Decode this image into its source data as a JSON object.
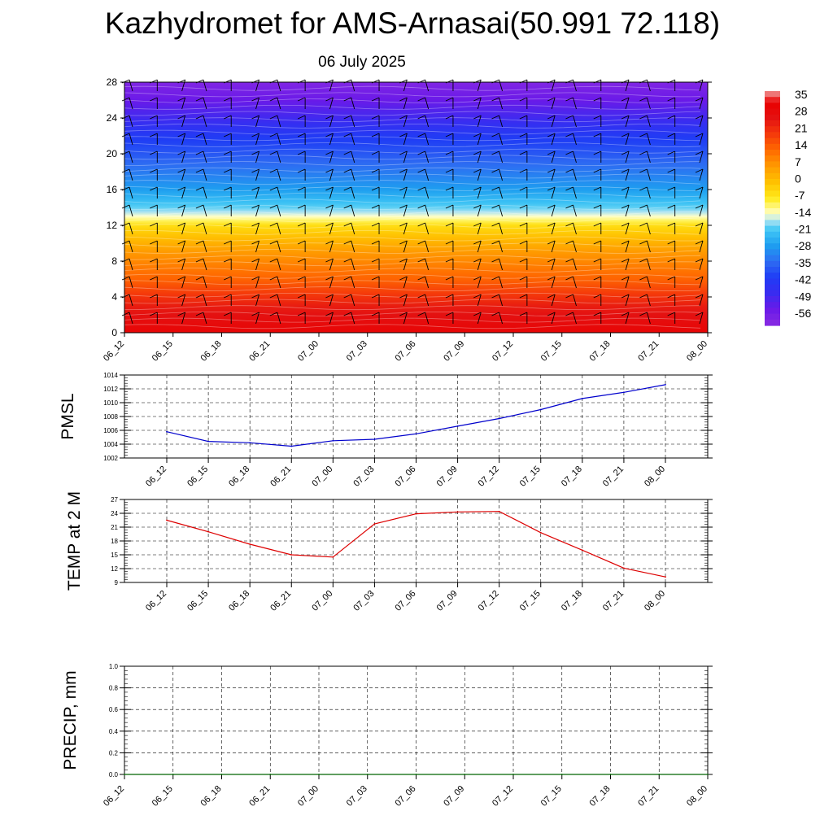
{
  "page": {
    "title": "Kazhydromet for AMS-Arnasai(50.991 72.118)",
    "subtitle": "06 July 2025"
  },
  "colors": {
    "pmsl_line": "#0000cc",
    "temp_line": "#dd0000",
    "precip_line": "#006400",
    "grid": "#000000"
  },
  "chart_data": [
    {
      "type": "heatmap",
      "title": "Kazhydromet for AMS-Arnasai(50.991 72.118)",
      "subtitle": "06 July 2025",
      "xlabel": "",
      "ylabel": "",
      "x_ticks": [
        "06_12",
        "06_15",
        "06_18",
        "06_21",
        "07_00",
        "07_03",
        "07_06",
        "07_09",
        "07_12",
        "07_15",
        "07_18",
        "07_21",
        "08_00"
      ],
      "y_ticks": [
        0,
        4,
        8,
        12,
        16,
        20,
        24,
        28
      ],
      "ylim": [
        0,
        28
      ],
      "colorbar_labels": [
        "35",
        "28",
        "21",
        "14",
        "7",
        "0",
        "-7",
        "-14",
        "-21",
        "-28",
        "-35",
        "-42",
        "-49",
        "-56"
      ],
      "colorbar_stops": [
        {
          "value": -63,
          "color": "#8a2be2"
        },
        {
          "value": -56,
          "color": "#6a1ae8"
        },
        {
          "value": -49,
          "color": "#3a2cf0"
        },
        {
          "value": -42,
          "color": "#1f3cf5"
        },
        {
          "value": -35,
          "color": "#2e6cf2"
        },
        {
          "value": -28,
          "color": "#1e9ef0"
        },
        {
          "value": -21,
          "color": "#41c8f5"
        },
        {
          "value": -17,
          "color": "#a9e2f2"
        },
        {
          "value": -14,
          "color": "#ffffc8"
        },
        {
          "value": -7,
          "color": "#ffea1a"
        },
        {
          "value": 0,
          "color": "#ffc000"
        },
        {
          "value": 7,
          "color": "#ff9a00"
        },
        {
          "value": 14,
          "color": "#ff6a00"
        },
        {
          "value": 21,
          "color": "#f53a0a"
        },
        {
          "value": 28,
          "color": "#e41212"
        },
        {
          "value": 35,
          "color": "#e90000"
        },
        {
          "value": 40,
          "color": "#f0a0a0"
        }
      ],
      "vertical_profile": [
        {
          "level": 0,
          "value": 33
        },
        {
          "level": 3,
          "value": 26
        },
        {
          "level": 6,
          "value": 15
        },
        {
          "level": 9,
          "value": 7
        },
        {
          "level": 12,
          "value": -5
        },
        {
          "level": 13,
          "value": -14
        },
        {
          "level": 14,
          "value": -20
        },
        {
          "level": 16,
          "value": -28
        },
        {
          "level": 18,
          "value": -33
        },
        {
          "level": 20,
          "value": -38
        },
        {
          "level": 22,
          "value": -43
        },
        {
          "level": 24,
          "value": -50
        },
        {
          "level": 26,
          "value": -56
        },
        {
          "level": 28,
          "value": -61
        }
      ],
      "wind_barbs": "wind barbs drawn at each time step and level"
    },
    {
      "type": "line",
      "ylabel": "PMSL",
      "xlabel": "",
      "x": [
        "06_12",
        "06_15",
        "06_18",
        "06_21",
        "07_00",
        "07_03",
        "07_06",
        "07_09",
        "07_12",
        "07_15",
        "07_18",
        "07_21",
        "08_00"
      ],
      "y_ticks": [
        1002,
        1004,
        1006,
        1008,
        1010,
        1012,
        1014
      ],
      "ylim": [
        1002,
        1014
      ],
      "series": [
        {
          "values": [
            1005.8,
            1004.4,
            1004.2,
            1003.7,
            1004.5,
            1004.7,
            1005.5,
            1006.6,
            1007.7,
            1009.0,
            1010.6,
            1011.5,
            1012.6
          ]
        }
      ]
    },
    {
      "type": "line",
      "ylabel": "TEMP at 2 M",
      "xlabel": "",
      "x": [
        "06_12",
        "06_15",
        "06_18",
        "06_21",
        "07_00",
        "07_03",
        "07_06",
        "07_09",
        "07_12",
        "07_15",
        "07_18",
        "07_21",
        "08_00"
      ],
      "y_ticks": [
        9,
        12,
        15,
        18,
        21,
        24,
        27
      ],
      "ylim": [
        9,
        27
      ],
      "series": [
        {
          "values": [
            22.5,
            20.0,
            17.3,
            15.0,
            14.5,
            21.7,
            23.9,
            24.3,
            24.4,
            19.8,
            16.0,
            12.1,
            10.2
          ]
        }
      ]
    },
    {
      "type": "line",
      "ylabel": "PRECIP, mm",
      "xlabel": "",
      "x": [
        "06_12",
        "06_15",
        "06_18",
        "06_21",
        "07_00",
        "07_03",
        "07_06",
        "07_09",
        "07_12",
        "07_15",
        "07_18",
        "07_21",
        "08_00"
      ],
      "y_ticks": [
        "0.0",
        "0.2",
        "0.4",
        "0.6",
        "0.8",
        "1.0"
      ],
      "ylim": [
        0,
        1
      ],
      "series": [
        {
          "values": [
            0,
            0,
            0,
            0,
            0,
            0,
            0,
            0,
            0,
            0,
            0,
            0,
            0
          ]
        }
      ]
    }
  ]
}
